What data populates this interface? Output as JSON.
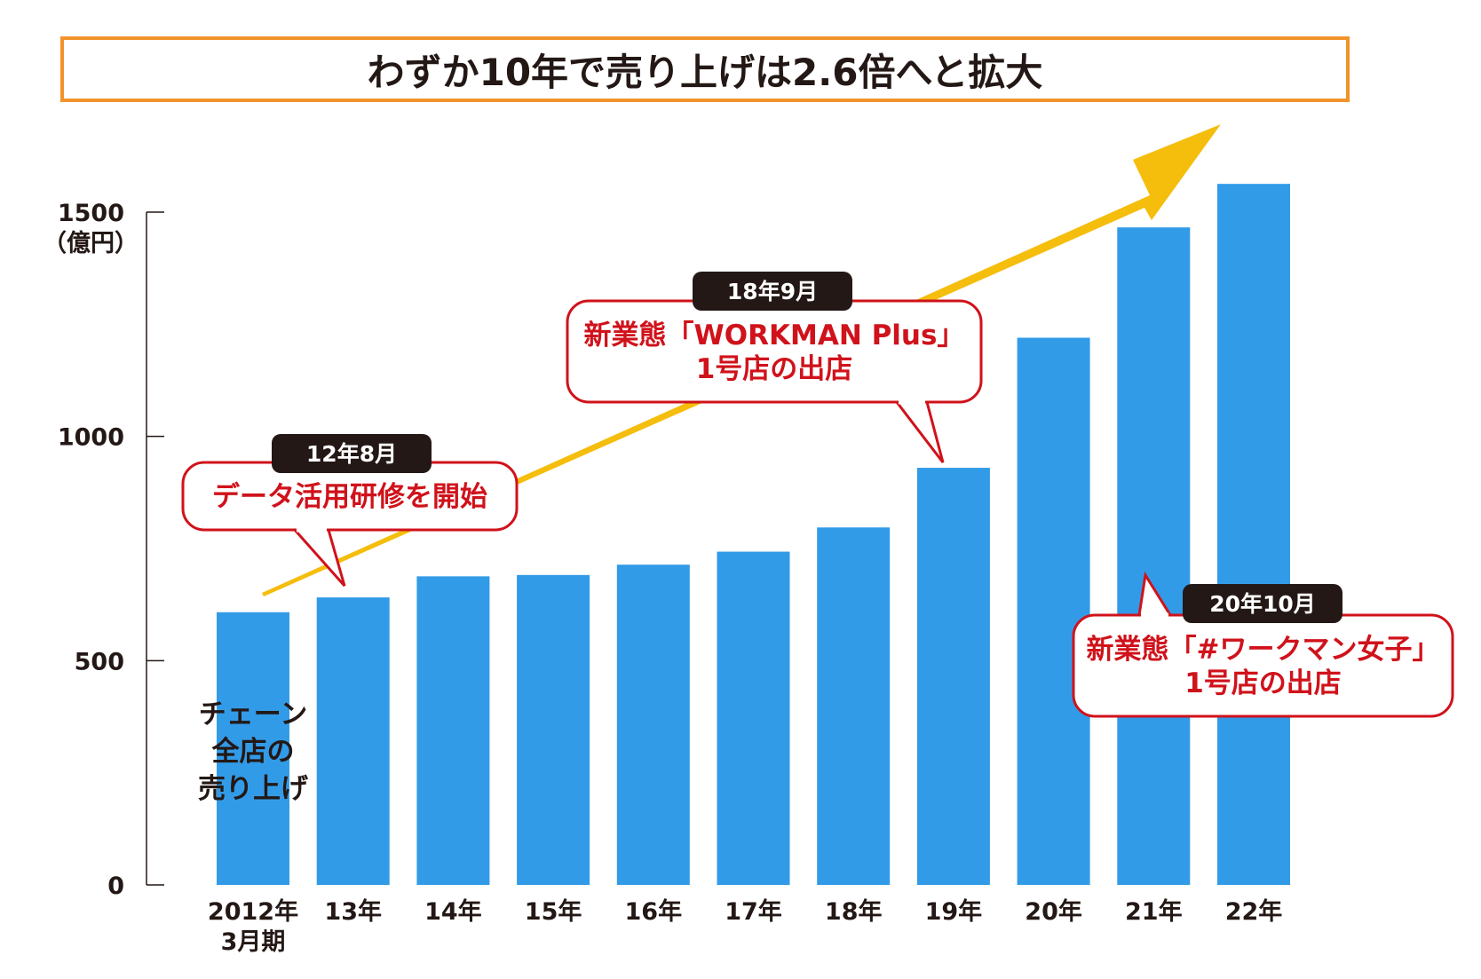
{
  "title": "わずか10年で売り上げは2.6倍へと拡大",
  "colors": {
    "bar": "#329be8",
    "arrow": "#f5bd0c",
    "frame": "#f0932b",
    "callout": "#d0121b",
    "badge": "#231815"
  },
  "chart_data": {
    "type": "bar",
    "categories": [
      "2012年",
      "13年",
      "14年",
      "15年",
      "16年",
      "17年",
      "18年",
      "19年",
      "20年",
      "21年",
      "22年"
    ],
    "first_category_sub": "3月期",
    "values": [
      608,
      641,
      688,
      691,
      714,
      743,
      797,
      930,
      1220,
      1466,
      1563
    ],
    "ylim": [
      0,
      1500
    ],
    "yticks": [
      0,
      500,
      1000,
      1500
    ],
    "yunit": "（億円）",
    "bar_note": [
      "チェーン",
      "全店の",
      "売り上げ"
    ],
    "callouts": [
      {
        "date": "12年8月",
        "lines": [
          "データ活用研修を開始"
        ]
      },
      {
        "date": "18年9月",
        "lines": [
          "新業態「WORKMAN Plus」",
          "1号店の出店"
        ]
      },
      {
        "date": "20年10月",
        "lines": [
          "新業態「#ワークマン女子」",
          "1号店の出店"
        ]
      }
    ]
  }
}
